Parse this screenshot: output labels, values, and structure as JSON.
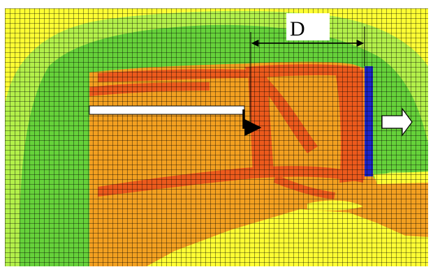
{
  "figure": {
    "dimension_label": "D"
  },
  "colors": {
    "yellow": "#ffff33",
    "light_green": "#b3f04a",
    "green": "#66d23a",
    "orange": "#f3a020",
    "red_orange": "#ec5a1c",
    "blue": "#1c24c8",
    "grid_line": "#000000",
    "bar_fill": "#ffffff"
  }
}
